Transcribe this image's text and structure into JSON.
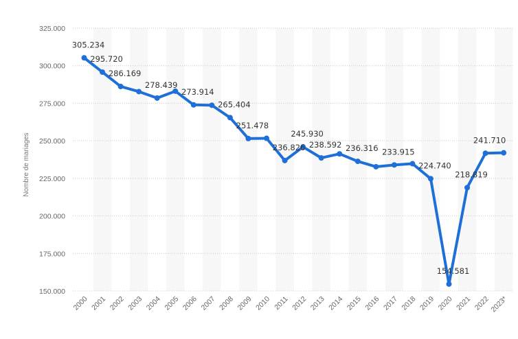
{
  "chart_data": {
    "type": "line",
    "title": "",
    "xlabel": "",
    "ylabel": "Nombre de mariages",
    "ylim": [
      150000,
      325000
    ],
    "yticks": [
      150000,
      175000,
      200000,
      225000,
      250000,
      275000,
      300000,
      325000
    ],
    "ytick_labels": [
      "150.000",
      "175.000",
      "200.000",
      "225.000",
      "250.000",
      "275.000",
      "300.000",
      "325.000"
    ],
    "grid": true,
    "alternating_column_bands": true,
    "color": "#1f6fd8",
    "categories": [
      "2000",
      "2001",
      "2002",
      "2003",
      "2004",
      "2005",
      "2006",
      "2007",
      "2008",
      "2009",
      "2010",
      "2011",
      "2012",
      "2013",
      "2014",
      "2015",
      "2016",
      "2017",
      "2018",
      "2019",
      "2020",
      "2021",
      "2022",
      "2023*"
    ],
    "values": [
      305234,
      295720,
      286169,
      282756,
      278439,
      283036,
      273914,
      273669,
      265404,
      251478,
      251654,
      236826,
      245930,
      238592,
      241292,
      236316,
      232725,
      233915,
      234735,
      224740,
      154581,
      218819,
      241710,
      242000
    ],
    "data_labels": [
      "305.234",
      "295.720",
      "286.169",
      "",
      "278.439",
      "",
      "273.914",
      "",
      "265.404",
      "251.478",
      "",
      "236.826",
      "245.930",
      "238.592",
      "",
      "236.316",
      "",
      "233.915",
      "",
      "224.740",
      "154.581",
      "218.819",
      "241.710",
      ""
    ]
  }
}
